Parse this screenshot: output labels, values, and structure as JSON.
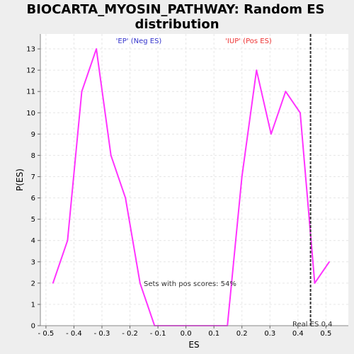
{
  "chart_data": {
    "type": "line",
    "title_line1": "BIOCARTA_MYOSIN_PATHWAY: Random ES",
    "title_line2": "distribution",
    "xlabel": "ES",
    "ylabel": "P(ES)",
    "xlim": [
      -0.52,
      0.58
    ],
    "ylim": [
      0,
      13.7
    ],
    "grid": true,
    "x_ticks": [
      -0.5,
      -0.4,
      -0.3,
      -0.2,
      -0.1,
      0.0,
      0.1,
      0.2,
      0.3,
      0.4,
      0.5
    ],
    "x_tick_labels": [
      "- 0.5",
      "- 0.4",
      "- 0.3",
      "- 0.2",
      "- 0.1",
      "0.0",
      "0.1",
      "0.2",
      "0.3",
      "0.4",
      "0.5"
    ],
    "y_ticks": [
      0,
      1,
      2,
      3,
      4,
      5,
      6,
      7,
      8,
      9,
      10,
      11,
      12,
      13
    ],
    "series": [
      {
        "color": "#ff33ff",
        "x": [
          -0.475,
          -0.423,
          -0.372,
          -0.32,
          -0.268,
          -0.216,
          -0.164,
          -0.112,
          -0.06,
          -0.008,
          0.044,
          0.096,
          0.148,
          0.2,
          0.252,
          0.304,
          0.356,
          0.408,
          0.46,
          0.512
        ],
        "y": [
          2,
          4,
          11,
          13,
          8,
          6,
          2,
          0,
          0,
          0,
          0,
          0,
          0,
          7,
          12,
          9,
          11,
          10,
          2,
          3
        ]
      }
    ],
    "real_es": 0.445,
    "real_es_label": "Real ES 0.4",
    "neg_label": "'EP' (Neg ES)",
    "pos_label": "'IUP' (Pos ES)",
    "neg_color": "#3333cc",
    "pos_color": "#ee3333",
    "pos_scores_text": "Sets with pos scores: 54%",
    "line_color": "#ff33ff",
    "marker_color": "#333333"
  }
}
